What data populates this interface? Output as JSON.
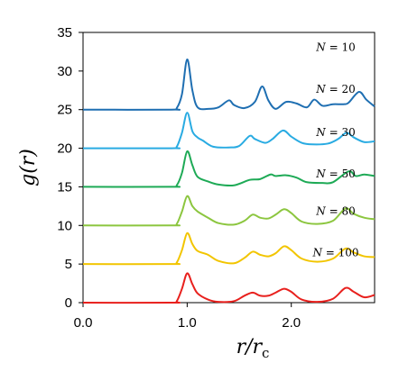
{
  "chart_data": {
    "type": "line",
    "title": "",
    "xlabel": "r/r_c",
    "ylabel": "g(r)",
    "xlim": [
      0,
      2.8
    ],
    "ylim": [
      0,
      35
    ],
    "x_ticks": [
      "0.0",
      "1.0",
      "2.0"
    ],
    "x_tick_values": [
      0,
      1,
      2
    ],
    "y_ticks": [
      "0",
      "5",
      "10",
      "15",
      "20",
      "25",
      "30",
      "35"
    ],
    "y_tick_values": [
      0,
      5,
      10,
      15,
      20,
      25,
      30,
      35
    ],
    "grid": false,
    "x_unit": "r/rc",
    "series": [
      {
        "name": "N = 10",
        "color": "#1f6fb2",
        "offset": 25,
        "points": [
          [
            0,
            0
          ],
          [
            0.85,
            0
          ],
          [
            0.9,
            0.2
          ],
          [
            0.95,
            2.0
          ],
          [
            1.0,
            6.5
          ],
          [
            1.05,
            2.5
          ],
          [
            1.1,
            0.3
          ],
          [
            1.2,
            0.1
          ],
          [
            1.3,
            0.3
          ],
          [
            1.4,
            1.2
          ],
          [
            1.45,
            0.6
          ],
          [
            1.55,
            0.2
          ],
          [
            1.65,
            1.0
          ],
          [
            1.72,
            3.0
          ],
          [
            1.78,
            1.2
          ],
          [
            1.85,
            0.1
          ],
          [
            1.95,
            1.0
          ],
          [
            2.05,
            0.8
          ],
          [
            2.15,
            0.3
          ],
          [
            2.22,
            1.3
          ],
          [
            2.3,
            0.5
          ],
          [
            2.4,
            0.7
          ],
          [
            2.5,
            0.7
          ],
          [
            2.55,
            0.9
          ],
          [
            2.65,
            2.3
          ],
          [
            2.72,
            1.3
          ],
          [
            2.8,
            0.4
          ]
        ]
      },
      {
        "name": "N = 20",
        "color": "#29abe2",
        "offset": 20,
        "points": [
          [
            0,
            0
          ],
          [
            0.85,
            0
          ],
          [
            0.9,
            0.2
          ],
          [
            0.95,
            2.0
          ],
          [
            1.0,
            4.6
          ],
          [
            1.05,
            2.2
          ],
          [
            1.1,
            1.4
          ],
          [
            1.15,
            1.0
          ],
          [
            1.25,
            0.2
          ],
          [
            1.4,
            0.1
          ],
          [
            1.5,
            0.3
          ],
          [
            1.6,
            1.6
          ],
          [
            1.65,
            1.2
          ],
          [
            1.75,
            0.7
          ],
          [
            1.82,
            1.2
          ],
          [
            1.92,
            2.3
          ],
          [
            2.0,
            1.5
          ],
          [
            2.1,
            0.7
          ],
          [
            2.2,
            0.5
          ],
          [
            2.35,
            0.6
          ],
          [
            2.45,
            1.2
          ],
          [
            2.53,
            2.0
          ],
          [
            2.6,
            1.4
          ],
          [
            2.7,
            0.8
          ],
          [
            2.8,
            0.9
          ]
        ]
      },
      {
        "name": "N = 30",
        "color": "#1eaa56",
        "offset": 15,
        "points": [
          [
            0,
            0
          ],
          [
            0.85,
            0
          ],
          [
            0.9,
            0.2
          ],
          [
            0.95,
            1.8
          ],
          [
            1.0,
            4.6
          ],
          [
            1.05,
            2.8
          ],
          [
            1.1,
            1.3
          ],
          [
            1.2,
            0.7
          ],
          [
            1.3,
            0.3
          ],
          [
            1.45,
            0.2
          ],
          [
            1.6,
            0.9
          ],
          [
            1.7,
            1.0
          ],
          [
            1.8,
            1.6
          ],
          [
            1.85,
            1.4
          ],
          [
            1.95,
            1.5
          ],
          [
            2.05,
            1.2
          ],
          [
            2.15,
            0.6
          ],
          [
            2.3,
            0.5
          ],
          [
            2.4,
            0.6
          ],
          [
            2.55,
            2.0
          ],
          [
            2.62,
            1.4
          ],
          [
            2.7,
            1.6
          ],
          [
            2.8,
            1.4
          ]
        ]
      },
      {
        "name": "N = 50",
        "color": "#8cc63f",
        "offset": 10,
        "points": [
          [
            0,
            0
          ],
          [
            0.85,
            0
          ],
          [
            0.9,
            0.2
          ],
          [
            0.95,
            1.8
          ],
          [
            1.0,
            3.8
          ],
          [
            1.05,
            2.5
          ],
          [
            1.1,
            1.8
          ],
          [
            1.2,
            1.0
          ],
          [
            1.3,
            0.3
          ],
          [
            1.45,
            0.1
          ],
          [
            1.55,
            0.6
          ],
          [
            1.63,
            1.4
          ],
          [
            1.7,
            1.0
          ],
          [
            1.78,
            0.9
          ],
          [
            1.85,
            1.4
          ],
          [
            1.93,
            2.1
          ],
          [
            2.0,
            1.6
          ],
          [
            2.1,
            0.5
          ],
          [
            2.25,
            0.2
          ],
          [
            2.4,
            0.6
          ],
          [
            2.52,
            2.2
          ],
          [
            2.6,
            1.5
          ],
          [
            2.7,
            1.0
          ],
          [
            2.8,
            0.8
          ]
        ]
      },
      {
        "name": "N = 80",
        "color": "#f2c500",
        "offset": 5,
        "points": [
          [
            0,
            0
          ],
          [
            0.85,
            0
          ],
          [
            0.9,
            0.2
          ],
          [
            0.95,
            1.8
          ],
          [
            1.0,
            4.0
          ],
          [
            1.05,
            2.6
          ],
          [
            1.1,
            1.7
          ],
          [
            1.2,
            1.2
          ],
          [
            1.3,
            0.4
          ],
          [
            1.45,
            0.1
          ],
          [
            1.55,
            0.8
          ],
          [
            1.63,
            1.6
          ],
          [
            1.7,
            1.2
          ],
          [
            1.78,
            1.0
          ],
          [
            1.85,
            1.4
          ],
          [
            1.93,
            2.3
          ],
          [
            2.0,
            1.8
          ],
          [
            2.1,
            0.7
          ],
          [
            2.25,
            0.3
          ],
          [
            2.4,
            0.7
          ],
          [
            2.52,
            2.0
          ],
          [
            2.6,
            1.5
          ],
          [
            2.7,
            1.0
          ],
          [
            2.8,
            0.9
          ]
        ]
      },
      {
        "name": "N = 100",
        "color": "#e8201d",
        "offset": 0,
        "points": [
          [
            0,
            0
          ],
          [
            0.85,
            0
          ],
          [
            0.9,
            0.2
          ],
          [
            0.95,
            1.8
          ],
          [
            1.0,
            3.8
          ],
          [
            1.05,
            2.4
          ],
          [
            1.1,
            1.2
          ],
          [
            1.2,
            0.4
          ],
          [
            1.3,
            0.1
          ],
          [
            1.45,
            0.2
          ],
          [
            1.55,
            0.9
          ],
          [
            1.63,
            1.3
          ],
          [
            1.7,
            0.9
          ],
          [
            1.78,
            0.9
          ],
          [
            1.85,
            1.3
          ],
          [
            1.93,
            1.8
          ],
          [
            2.0,
            1.4
          ],
          [
            2.1,
            0.4
          ],
          [
            2.25,
            0.1
          ],
          [
            2.4,
            0.5
          ],
          [
            2.52,
            1.9
          ],
          [
            2.6,
            1.4
          ],
          [
            2.7,
            0.7
          ],
          [
            2.8,
            1.0
          ]
        ]
      }
    ]
  }
}
